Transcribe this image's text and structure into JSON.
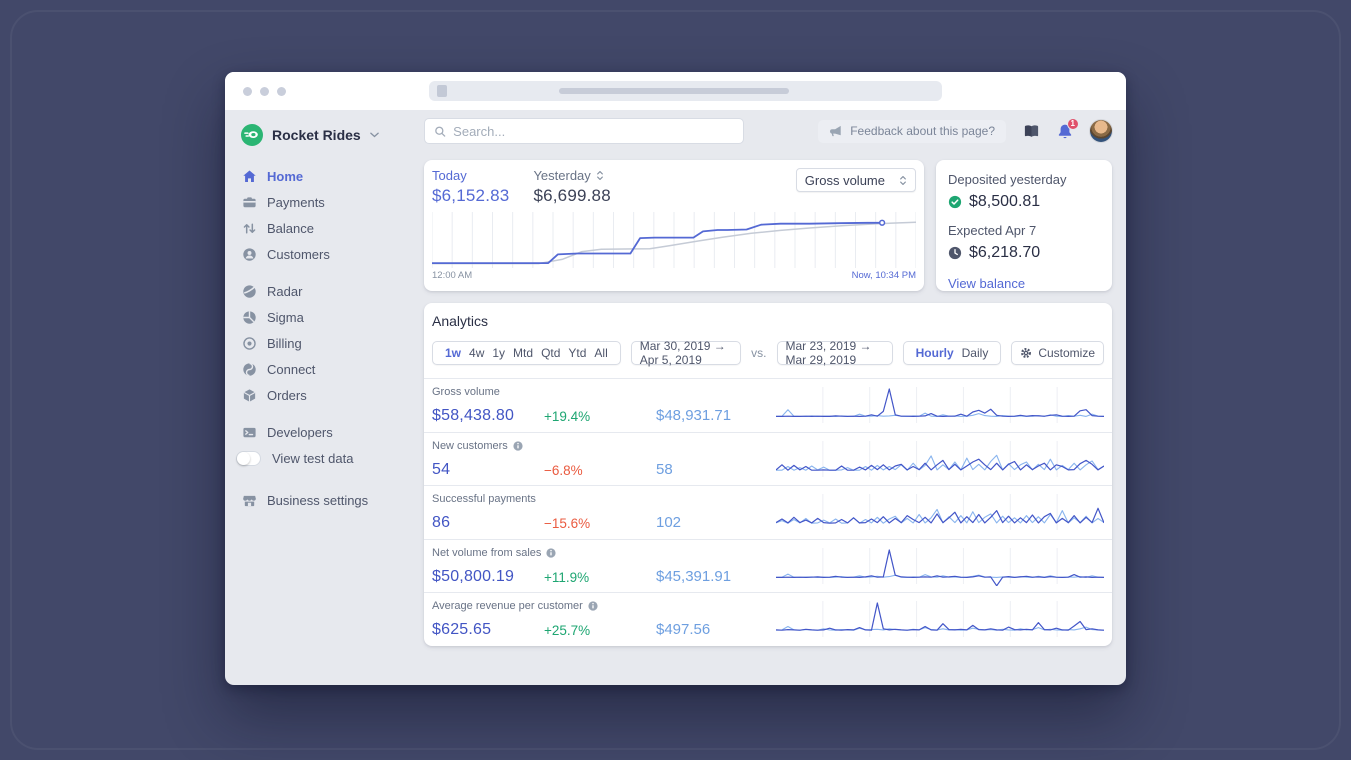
{
  "colors": {
    "accent": "#5469d4",
    "positive": "#1ea672",
    "negative": "#ea5b40",
    "metric_value": "#4255c4",
    "comparison": "#6e9fe0",
    "brand_logo_green": "#2bb573",
    "notification_badge": "#e0506a"
  },
  "sidebar": {
    "brand": "Rocket Rides",
    "items": [
      {
        "label": "Home",
        "icon": "home",
        "active": true
      },
      {
        "label": "Payments",
        "icon": "payments"
      },
      {
        "label": "Balance",
        "icon": "balance"
      },
      {
        "label": "Customers",
        "icon": "customers"
      },
      {
        "label": "Radar",
        "icon": "radar"
      },
      {
        "label": "Sigma",
        "icon": "sigma"
      },
      {
        "label": "Billing",
        "icon": "billing"
      },
      {
        "label": "Connect",
        "icon": "connect"
      },
      {
        "label": "Orders",
        "icon": "orders"
      },
      {
        "label": "Developers",
        "icon": "developers"
      },
      {
        "label": "View test data",
        "icon": "toggle-off"
      },
      {
        "label": "Business settings",
        "icon": "storefront"
      }
    ]
  },
  "topbar": {
    "search_placeholder": "Search...",
    "feedback_label": "Feedback about this page?",
    "notification_count": "1"
  },
  "hero": {
    "today_label": "Today",
    "today_value": "$6,152.83",
    "yesterday_label": "Yesterday",
    "yesterday_value": "$6,699.88",
    "metric_select_value": "Gross volume",
    "axis_start": "12:00 AM",
    "axis_end": "Now, 10:34 PM"
  },
  "deposits": {
    "deposited_label": "Deposited yesterday",
    "deposited_value": "$8,500.81",
    "expected_label": "Expected Apr 7",
    "expected_value": "$6,218.70",
    "link_label": "View balance"
  },
  "analytics": {
    "title": "Analytics",
    "range_options": [
      "1w",
      "4w",
      "1y",
      "Mtd",
      "Qtd",
      "Ytd",
      "All"
    ],
    "active_range": "1w",
    "period_current": "Mar 30, 2019 →  Apr 5, 2019",
    "vs_label": "vs.",
    "period_previous": "Mar 23, 2019 → Mar 29, 2019",
    "granularity_options": [
      "Hourly",
      "Daily"
    ],
    "active_granularity": "Hourly",
    "customize_label": "Customize",
    "rows": [
      {
        "label": "Gross volume",
        "info": false,
        "value": "$58,438.80",
        "change": "+19.4%",
        "direction": "up",
        "comparison": "$48,931.71"
      },
      {
        "label": "New customers",
        "info": true,
        "value": "54",
        "change": "−6.8%",
        "direction": "down",
        "comparison": "58"
      },
      {
        "label": "Successful payments",
        "info": false,
        "value": "86",
        "change": "−15.6%",
        "direction": "down",
        "comparison": "102"
      },
      {
        "label": "Net volume from sales",
        "info": true,
        "value": "$50,800.19",
        "change": "+11.9%",
        "direction": "up",
        "comparison": "$45,391.91"
      },
      {
        "label": "Average revenue per customer",
        "info": true,
        "value": "$625.65",
        "change": "+25.7%",
        "direction": "up",
        "comparison": "$497.56"
      }
    ]
  },
  "chart_data": [
    {
      "type": "line",
      "title": "Gross volume — Today vs Yesterday (cumulative)",
      "x_axis": {
        "start_label": "12:00 AM",
        "end_label": "Now, 10:34 PM",
        "unit": "hour",
        "gridlines": 24
      },
      "ylim": [
        0,
        100
      ],
      "legend": "none",
      "series": [
        {
          "name": "Today",
          "color": "#5469d4",
          "end_marker": true,
          "final_value_label": "$6,152.83",
          "points": [
            [
              0,
              4
            ],
            [
              10,
              4
            ],
            [
              24,
              4
            ],
            [
              26,
              22
            ],
            [
              30,
              24
            ],
            [
              41,
              24
            ],
            [
              43,
              56
            ],
            [
              46,
              57
            ],
            [
              54,
              57
            ],
            [
              56,
              70
            ],
            [
              59,
              73
            ],
            [
              61,
              73
            ],
            [
              65,
              74
            ],
            [
              68,
              84
            ],
            [
              72,
              86
            ],
            [
              78,
              86
            ],
            [
              84,
              87
            ],
            [
              90,
              88
            ],
            [
              93,
              88
            ]
          ]
        },
        {
          "name": "Yesterday",
          "color": "#c5cbd6",
          "end_marker": false,
          "final_value_label": "$6,699.88",
          "points": [
            [
              0,
              3
            ],
            [
              22,
              3
            ],
            [
              27,
              12
            ],
            [
              31,
              28
            ],
            [
              35,
              33
            ],
            [
              45,
              34
            ],
            [
              49,
              40
            ],
            [
              55,
              50
            ],
            [
              60,
              58
            ],
            [
              66,
              66
            ],
            [
              72,
              72
            ],
            [
              78,
              77
            ],
            [
              85,
              82
            ],
            [
              92,
              86
            ],
            [
              100,
              89
            ]
          ]
        }
      ]
    },
    {
      "type": "line",
      "subtype": "sparklines",
      "title": "Analytics hourly sparklines, Mar 30 – Apr 5 2019 vs Mar 23 – Mar 29 2019",
      "gridline_segments": 7,
      "current_color": "#4356c8",
      "previous_color": "#8ab5ee",
      "rows": [
        {
          "metric": "Gross volume",
          "current": [
            2,
            2,
            3,
            2,
            2,
            3,
            2,
            3,
            2,
            2,
            4,
            3,
            2,
            3,
            2,
            3,
            8,
            3,
            20,
            100,
            8,
            3,
            3,
            2,
            3,
            4,
            12,
            3,
            2,
            3,
            3,
            10,
            3,
            18,
            24,
            14,
            28,
            6,
            3,
            2,
            3,
            6,
            3,
            5,
            4,
            3,
            6,
            8,
            3,
            2,
            3,
            22,
            26,
            5,
            3,
            2
          ],
          "previous": [
            2,
            3,
            26,
            3,
            2,
            2,
            4,
            2,
            3,
            3,
            2,
            4,
            2,
            2,
            10,
            3,
            3,
            5,
            3,
            4,
            6,
            3,
            2,
            4,
            3,
            14,
            3,
            2,
            8,
            3,
            4,
            2,
            3,
            6,
            12,
            5,
            3,
            2,
            5,
            3,
            2,
            4,
            2,
            3,
            5,
            2,
            8,
            3,
            2,
            5,
            3,
            6,
            2,
            10,
            3,
            2
          ]
        },
        {
          "metric": "New customers",
          "current": [
            4,
            22,
            3,
            20,
            4,
            16,
            3,
            3,
            4,
            3,
            3,
            18,
            3,
            3,
            14,
            4,
            20,
            5,
            22,
            4,
            18,
            24,
            4,
            16,
            5,
            28,
            4,
            22,
            38,
            5,
            24,
            4,
            18,
            32,
            42,
            22,
            5,
            28,
            4,
            24,
            34,
            4,
            22,
            5,
            18,
            28,
            4,
            22,
            16,
            4,
            5,
            26,
            38,
            24,
            4,
            18
          ],
          "previous": [
            3,
            3,
            16,
            3,
            12,
            3,
            18,
            4,
            14,
            3,
            3,
            4,
            12,
            3,
            3,
            16,
            3,
            20,
            4,
            16,
            5,
            22,
            3,
            28,
            4,
            20,
            54,
            4,
            22,
            5,
            32,
            4,
            46,
            5,
            24,
            4,
            34,
            56,
            4,
            26,
            5,
            22,
            32,
            4,
            24,
            5,
            42,
            4,
            20,
            5,
            28,
            4,
            22,
            36,
            5,
            18
          ]
        },
        {
          "metric": "Successful payments",
          "current": [
            5,
            18,
            4,
            24,
            5,
            14,
            4,
            20,
            5,
            3,
            4,
            16,
            4,
            22,
            4,
            5,
            18,
            5,
            26,
            4,
            20,
            5,
            30,
            16,
            5,
            24,
            4,
            36,
            5,
            22,
            42,
            4,
            26,
            5,
            34,
            4,
            24,
            48,
            5,
            28,
            4,
            22,
            5,
            32,
            4,
            26,
            38,
            4,
            20,
            5,
            30,
            4,
            24,
            5,
            56,
            4
          ],
          "previous": [
            4,
            12,
            3,
            16,
            4,
            20,
            3,
            4,
            14,
            4,
            18,
            3,
            4,
            22,
            3,
            16,
            4,
            24,
            3,
            18,
            28,
            4,
            20,
            4,
            34,
            4,
            22,
            52,
            4,
            26,
            5,
            30,
            4,
            44,
            5,
            24,
            36,
            4,
            28,
            5,
            22,
            4,
            30,
            5,
            26,
            4,
            34,
            5,
            48,
            4,
            22,
            5,
            28,
            4,
            20,
            5
          ]
        },
        {
          "metric": "Net volume from sales",
          "current": [
            2,
            2,
            3,
            2,
            3,
            2,
            3,
            4,
            2,
            3,
            6,
            3,
            2,
            3,
            2,
            4,
            8,
            3,
            4,
            100,
            10,
            4,
            3,
            2,
            3,
            4,
            3,
            8,
            3,
            4,
            6,
            3,
            2,
            4,
            8,
            3,
            4,
            -28,
            3,
            5,
            2,
            4,
            6,
            3,
            4,
            2,
            5,
            3,
            2,
            3,
            12,
            3,
            4,
            2,
            3,
            2
          ],
          "previous": [
            2,
            3,
            14,
            3,
            2,
            3,
            4,
            2,
            3,
            2,
            3,
            5,
            2,
            3,
            8,
            3,
            4,
            6,
            3,
            5,
            10,
            3,
            2,
            4,
            3,
            12,
            4,
            3,
            8,
            3,
            4,
            2,
            3,
            6,
            10,
            4,
            3,
            2,
            4,
            3,
            2,
            5,
            3,
            2,
            6,
            3,
            8,
            3,
            2,
            4,
            3,
            5,
            2,
            8,
            3,
            2
          ]
        },
        {
          "metric": "Average revenue per customer",
          "current": [
            4,
            3,
            5,
            4,
            3,
            6,
            4,
            3,
            4,
            10,
            4,
            3,
            5,
            4,
            12,
            4,
            3,
            100,
            8,
            4,
            6,
            4,
            3,
            5,
            4,
            16,
            4,
            3,
            26,
            5,
            4,
            6,
            4,
            20,
            5,
            4,
            8,
            4,
            3,
            14,
            5,
            4,
            6,
            4,
            30,
            5,
            4,
            10,
            4,
            3,
            18,
            34,
            5,
            8,
            4,
            3
          ],
          "previous": [
            3,
            4,
            16,
            4,
            3,
            5,
            4,
            3,
            8,
            4,
            3,
            5,
            4,
            3,
            10,
            4,
            5,
            6,
            4,
            8,
            5,
            4,
            3,
            6,
            4,
            12,
            5,
            4,
            8,
            4,
            5,
            3,
            4,
            10,
            6,
            4,
            5,
            3,
            6,
            4,
            3,
            8,
            4,
            5,
            12,
            4,
            6,
            4,
            3,
            5,
            4,
            8,
            14,
            5,
            4,
            3
          ]
        }
      ]
    }
  ]
}
